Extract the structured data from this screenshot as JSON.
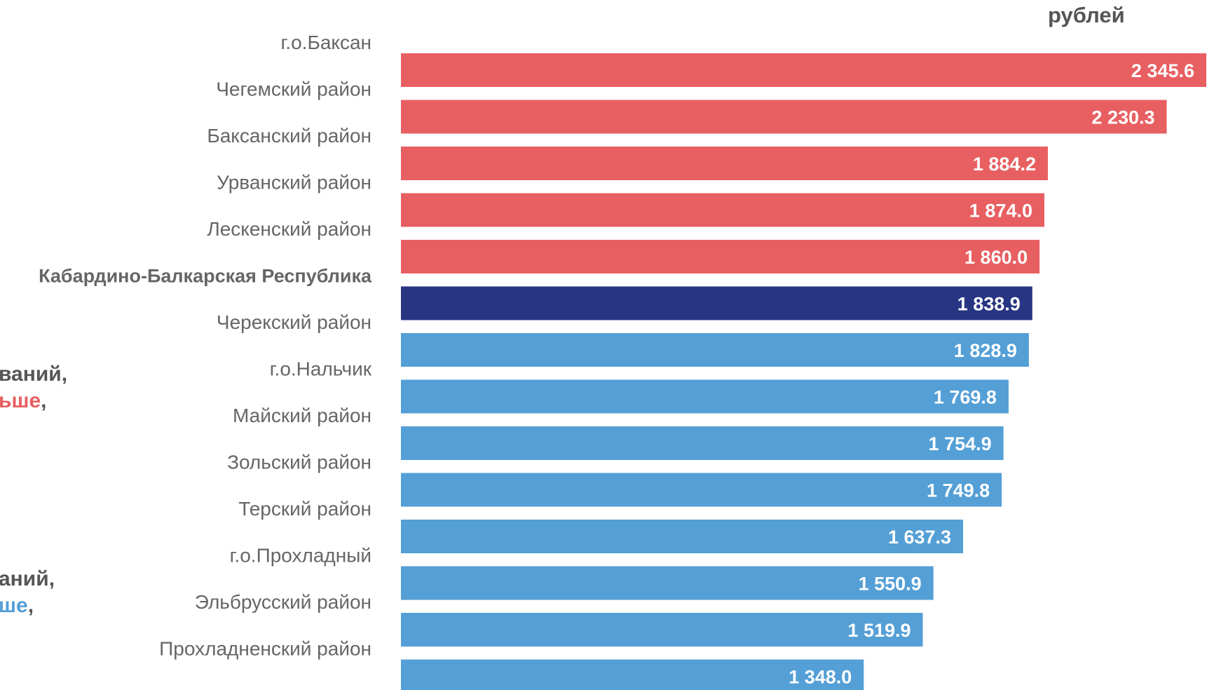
{
  "unit_label": "рублей",
  "legend_fragments": {
    "above": {
      "line1": "ваний,",
      "line2_word": "ьше",
      "line2_comma": ","
    },
    "below": {
      "line1": "аний,",
      "line2_word": "ше",
      "line2_comma": ","
    }
  },
  "colors": {
    "above": "#e85f62",
    "republic": "#283583",
    "below": "#549fd6",
    "category_text": "#666666",
    "value_text": "#ffffff"
  },
  "chart_data": {
    "type": "bar",
    "orientation": "horizontal",
    "categories": [
      "г.о.Баксан",
      "Чегемский район",
      "Баксанский район",
      "Урванский район",
      "Лескенский район",
      "Кабардино-Балкарская Республика",
      "Черекский район",
      "г.о.Нальчик",
      "Майский район",
      "Зольский район",
      "Терский район",
      "г.о.Прохладный",
      "Эльбрусский район",
      "Прохладненский район"
    ],
    "values": [
      2345.6,
      2230.3,
      1884.2,
      1874.0,
      1860.0,
      1838.9,
      1828.9,
      1769.8,
      1754.9,
      1749.8,
      1637.3,
      1550.9,
      1519.9,
      1348.0
    ],
    "value_labels": [
      "2 345.6",
      "2 230.3",
      "1 884.2",
      "1 874.0",
      "1 860.0",
      "1 838.9",
      "1 828.9",
      "1 769.8",
      "1 754.9",
      "1 749.8",
      "1 637.3",
      "1 550.9",
      "1 519.9",
      "1 348.0"
    ],
    "groups": [
      "above",
      "above",
      "above",
      "above",
      "above",
      "republic",
      "below",
      "below",
      "below",
      "below",
      "below",
      "below",
      "below",
      "below"
    ],
    "xlim": [
      0,
      2345.6
    ],
    "legend": "none",
    "grid": false
  }
}
